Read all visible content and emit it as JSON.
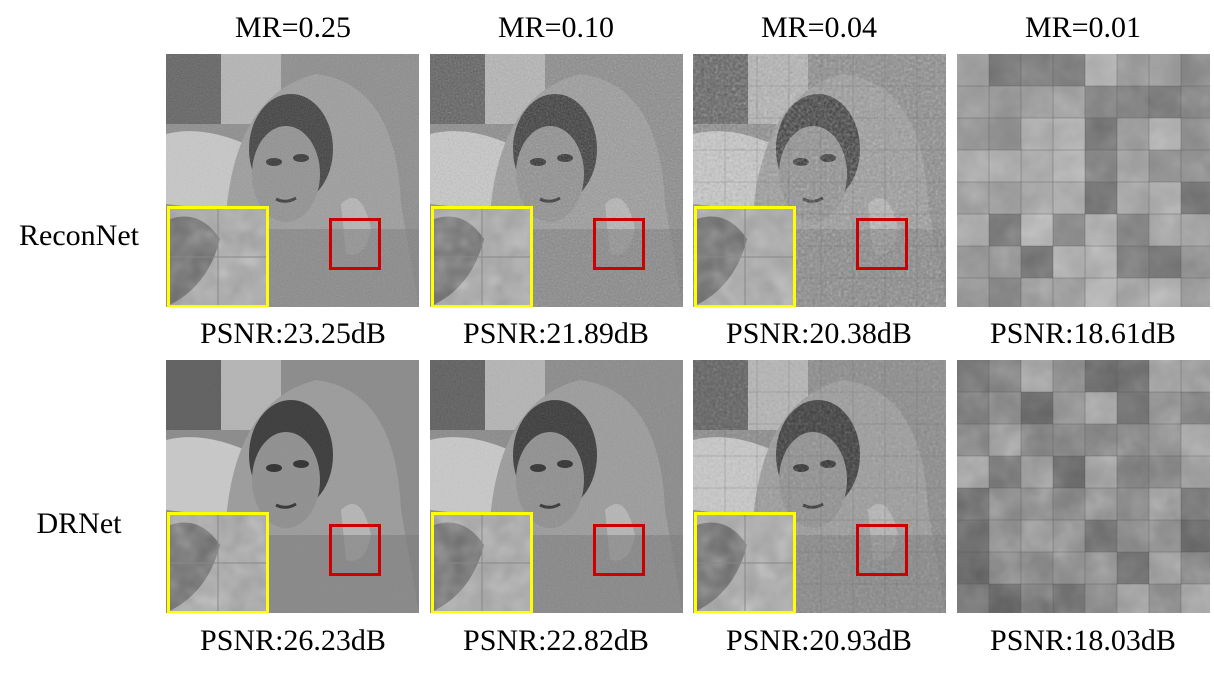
{
  "columns": [
    "MR=0.25",
    "MR=0.10",
    "MR=0.04",
    "MR=0.01"
  ],
  "rows": [
    {
      "label": "ReconNet",
      "psnr": [
        "PSNR:23.25dB",
        "PSNR:21.89dB",
        "PSNR:20.38dB",
        "PSNR:18.61dB"
      ]
    },
    {
      "label": "DRNet",
      "psnr": [
        "PSNR:26.23dB",
        "PSNR:22.82dB",
        "PSNR:20.93dB",
        "PSNR:18.03dB"
      ]
    }
  ],
  "colors": {
    "zoom_box": "#ffff00",
    "roi_box": "#cc0000"
  }
}
